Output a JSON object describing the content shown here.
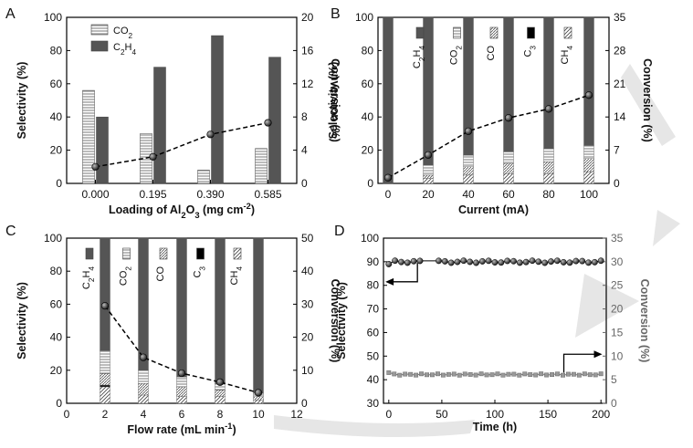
{
  "watermark_color": "#e6e6e6",
  "chart_data": [
    {
      "panel": "A",
      "type": "bar",
      "xlabel": "Loading of Al2O3 (mg cm-2)",
      "ylabel": "Selectivity (%)",
      "y2label": "Conversion (%)",
      "categories": [
        "0.000",
        "0.195",
        "0.390",
        "0.585"
      ],
      "ylim": [
        0,
        100
      ],
      "y2lim": [
        0,
        20
      ],
      "yticks": [
        "0",
        "20",
        "40",
        "60",
        "80",
        "100"
      ],
      "y2ticks": [
        "0",
        "4",
        "8",
        "12",
        "16",
        "20"
      ],
      "series": [
        {
          "name": "CO2",
          "pattern": "hlines",
          "values": [
            56,
            30,
            8,
            21
          ]
        },
        {
          "name": "C2H4",
          "pattern": "solid",
          "values": [
            40,
            70,
            89,
            76
          ]
        }
      ],
      "conversion": [
        2.0,
        3.2,
        5.9,
        7.3
      ],
      "legend": [
        "CO2",
        "C2H4"
      ],
      "legend_position": "top-left"
    },
    {
      "panel": "B",
      "type": "bar",
      "stacked": true,
      "xlabel": "Current (mA)",
      "ylabel": "Selectivity (%)",
      "y2label": "Conversion (%)",
      "x": [
        0,
        20,
        40,
        60,
        80,
        100
      ],
      "xlim": [
        -5,
        110
      ],
      "xticks": [
        "0",
        "20",
        "40",
        "60",
        "80",
        "100"
      ],
      "ylim": [
        0,
        100
      ],
      "y2lim": [
        0,
        35
      ],
      "yticks": [
        "0",
        "20",
        "40",
        "60",
        "80",
        "100"
      ],
      "y2ticks": [
        "0",
        "7",
        "14",
        "21",
        "28",
        "35"
      ],
      "series": [
        {
          "name": "CH4",
          "pattern": "dlines",
          "values": [
            0,
            3,
            5,
            6,
            6,
            7
          ]
        },
        {
          "name": "C3",
          "pattern": "black",
          "values": [
            0,
            0,
            0,
            0,
            0,
            0
          ]
        },
        {
          "name": "CO",
          "pattern": "hatch",
          "values": [
            0,
            2,
            5,
            6,
            7,
            8
          ]
        },
        {
          "name": "CO2",
          "pattern": "hlines",
          "values": [
            0,
            6,
            7,
            7,
            8,
            8
          ]
        },
        {
          "name": "C2H4",
          "pattern": "solid",
          "values": [
            100,
            89,
            83,
            81,
            79,
            77
          ]
        }
      ],
      "conversion": [
        1.2,
        6.0,
        11.0,
        13.8,
        15.7,
        18.6
      ],
      "legend": [
        "C2H4",
        "CO2",
        "CO",
        "C3",
        "CH4"
      ],
      "legend_position": "top, inside bars"
    },
    {
      "panel": "C",
      "type": "bar",
      "stacked": true,
      "xlabel": "Flow rate (mL min-1)",
      "ylabel": "Selectivity (%)",
      "y2label": "Conversion (%)",
      "x": [
        2,
        4,
        6,
        8,
        10
      ],
      "xlim": [
        0,
        12
      ],
      "xticks": [
        "0",
        "2",
        "4",
        "6",
        "8",
        "10",
        "12"
      ],
      "ylim": [
        0,
        100
      ],
      "y2lim": [
        0,
        50
      ],
      "yticks": [
        "0",
        "20",
        "40",
        "60",
        "80",
        "100"
      ],
      "y2ticks": [
        "0",
        "10",
        "20",
        "30",
        "40",
        "50"
      ],
      "series": [
        {
          "name": "CH4",
          "pattern": "dlines",
          "values": [
            10,
            5,
            4,
            4,
            2
          ]
        },
        {
          "name": "C3",
          "pattern": "black",
          "values": [
            1,
            0,
            0,
            0,
            0
          ]
        },
        {
          "name": "CO",
          "pattern": "hatch",
          "values": [
            7,
            7,
            6,
            4,
            2
          ]
        },
        {
          "name": "CO2",
          "pattern": "hlines",
          "values": [
            14,
            8,
            6,
            4,
            2
          ]
        },
        {
          "name": "C2H4",
          "pattern": "solid",
          "values": [
            68,
            80,
            84,
            88,
            94
          ]
        }
      ],
      "conversion": [
        29.5,
        13.9,
        9.1,
        6.4,
        3.2
      ],
      "legend": [
        "C2H4",
        "CO2",
        "CO",
        "C3",
        "CH4"
      ],
      "legend_position": "top, inside bars"
    },
    {
      "panel": "D",
      "type": "line",
      "xlabel": "Time (h)",
      "ylabel": "Selectivity (%)",
      "y2label": "Conversion (%)",
      "xlim": [
        -5,
        205
      ],
      "xticks": [
        "0",
        "50",
        "100",
        "150",
        "200"
      ],
      "ylim": [
        30,
        100
      ],
      "y2lim": [
        0,
        35
      ],
      "yticks": [
        "30",
        "40",
        "50",
        "60",
        "70",
        "80",
        "90",
        "100"
      ],
      "y2ticks": [
        "0",
        "5",
        "10",
        "15",
        "20",
        "25",
        "30",
        "35"
      ],
      "selectivity": {
        "x_start": 0,
        "x_end": 200,
        "points": 35,
        "mean": 90,
        "gap": [
          35,
          45
        ]
      },
      "conversion": {
        "x_start": 0,
        "x_end": 200,
        "points": 40,
        "mean": 6.1
      },
      "annotations": [
        "arrow pointing to left axis from selectivity line",
        "arrow pointing to right axis from conversion line"
      ]
    }
  ]
}
